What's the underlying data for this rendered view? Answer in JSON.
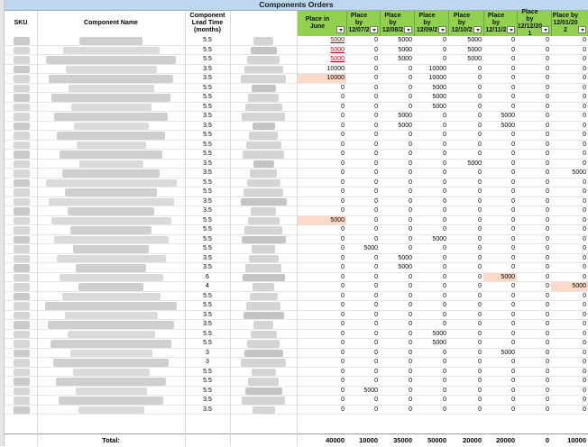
{
  "title": "Components Orders",
  "headers": {
    "sku": "SKU",
    "component_name": "Component Name",
    "lead_time": "Component Lead Time (months)",
    "place_cols": [
      "Place in June",
      "Place by 12/07/2",
      "Place by 12/08/2",
      "Place by 12/09/2",
      "Place by 12/10/2",
      "Place by 12/11/2",
      "Place by 12/12/20 1",
      "Place by 12/01/20 2"
    ]
  },
  "rows": [
    {
      "lt": "5.5",
      "v": [
        "5000",
        "0",
        "5000",
        "0",
        "5000",
        "0",
        "0",
        "0"
      ],
      "hl": [],
      "ul": [
        0
      ]
    },
    {
      "lt": "5.5",
      "v": [
        "5000",
        "0",
        "5000",
        "0",
        "5000",
        "0",
        "0",
        "0"
      ],
      "hl": [],
      "ul": [
        0
      ]
    },
    {
      "lt": "5.5",
      "v": [
        "5000",
        "0",
        "5000",
        "0",
        "5000",
        "0",
        "0",
        "0"
      ],
      "hl": [],
      "ul": [
        0
      ]
    },
    {
      "lt": "3.5",
      "v": [
        "10000",
        "0",
        "0",
        "10000",
        "0",
        "0",
        "0",
        "0"
      ],
      "hl": [],
      "ul": []
    },
    {
      "lt": "3.5",
      "v": [
        "10000",
        "0",
        "0",
        "10000",
        "0",
        "0",
        "0",
        "0"
      ],
      "hl": [
        0
      ],
      "ul": []
    },
    {
      "lt": "5.5",
      "v": [
        "0",
        "0",
        "0",
        "5000",
        "0",
        "0",
        "0",
        "0"
      ],
      "hl": [],
      "ul": []
    },
    {
      "lt": "5.5",
      "v": [
        "0",
        "0",
        "0",
        "5000",
        "0",
        "0",
        "0",
        "0"
      ],
      "hl": [],
      "ul": []
    },
    {
      "lt": "5.5",
      "v": [
        "0",
        "0",
        "0",
        "5000",
        "0",
        "0",
        "0",
        "0"
      ],
      "hl": [],
      "ul": []
    },
    {
      "lt": "3.5",
      "v": [
        "0",
        "0",
        "5000",
        "0",
        "0",
        "5000",
        "0",
        "0"
      ],
      "hl": [],
      "ul": []
    },
    {
      "lt": "3.5",
      "v": [
        "0",
        "0",
        "5000",
        "0",
        "0",
        "5000",
        "0",
        "0"
      ],
      "hl": [],
      "ul": []
    },
    {
      "lt": "5.5",
      "v": [
        "0",
        "0",
        "0",
        "0",
        "0",
        "0",
        "0",
        "0"
      ],
      "hl": [],
      "ul": []
    },
    {
      "lt": "5.5",
      "v": [
        "0",
        "0",
        "0",
        "0",
        "0",
        "0",
        "0",
        "0"
      ],
      "hl": [],
      "ul": []
    },
    {
      "lt": "5.5",
      "v": [
        "0",
        "0",
        "0",
        "0",
        "0",
        "0",
        "0",
        "0"
      ],
      "hl": [],
      "ul": []
    },
    {
      "lt": "3.5",
      "v": [
        "0",
        "0",
        "0",
        "0",
        "5000",
        "0",
        "0",
        "0"
      ],
      "hl": [],
      "ul": []
    },
    {
      "lt": "3.5",
      "v": [
        "0",
        "0",
        "0",
        "0",
        "0",
        "0",
        "0",
        "5000"
      ],
      "hl": [],
      "ul": []
    },
    {
      "lt": "5.5",
      "v": [
        "0",
        "0",
        "0",
        "0",
        "0",
        "0",
        "0",
        "0"
      ],
      "hl": [],
      "ul": []
    },
    {
      "lt": "5.5",
      "v": [
        "0",
        "0",
        "0",
        "0",
        "0",
        "0",
        "0",
        "0"
      ],
      "hl": [],
      "ul": []
    },
    {
      "lt": "3.5",
      "v": [
        "0",
        "0",
        "0",
        "0",
        "0",
        "0",
        "0",
        "0"
      ],
      "hl": [],
      "ul": []
    },
    {
      "lt": "3.5",
      "v": [
        "0",
        "0",
        "0",
        "0",
        "0",
        "0",
        "0",
        "0"
      ],
      "hl": [],
      "ul": []
    },
    {
      "lt": "5.5",
      "v": [
        "5000",
        "0",
        "0",
        "0",
        "0",
        "0",
        "0",
        "0"
      ],
      "hl": [
        0
      ],
      "ul": []
    },
    {
      "lt": "5.5",
      "v": [
        "0",
        "0",
        "0",
        "0",
        "0",
        "0",
        "0",
        "0"
      ],
      "hl": [],
      "ul": []
    },
    {
      "lt": "5.5",
      "v": [
        "0",
        "0",
        "0",
        "5000",
        "0",
        "0",
        "0",
        "0"
      ],
      "hl": [],
      "ul": []
    },
    {
      "lt": "5.5",
      "v": [
        "0",
        "5000",
        "0",
        "0",
        "0",
        "0",
        "0",
        "0"
      ],
      "hl": [],
      "ul": []
    },
    {
      "lt": "3.5",
      "v": [
        "0",
        "0",
        "5000",
        "0",
        "0",
        "0",
        "0",
        "0"
      ],
      "hl": [],
      "ul": []
    },
    {
      "lt": "3.5",
      "v": [
        "0",
        "0",
        "5000",
        "0",
        "0",
        "0",
        "0",
        "0"
      ],
      "hl": [],
      "ul": []
    },
    {
      "lt": "6",
      "v": [
        "0",
        "0",
        "0",
        "0",
        "0",
        "5000",
        "0",
        "0"
      ],
      "hl": [
        5
      ],
      "ul": []
    },
    {
      "lt": "4",
      "v": [
        "0",
        "0",
        "0",
        "0",
        "0",
        "0",
        "0",
        "5000"
      ],
      "hl": [
        7
      ],
      "ul": []
    },
    {
      "lt": "5.5",
      "v": [
        "0",
        "0",
        "0",
        "0",
        "0",
        "0",
        "0",
        "0"
      ],
      "hl": [],
      "ul": []
    },
    {
      "lt": "5.5",
      "v": [
        "0",
        "0",
        "0",
        "0",
        "0",
        "0",
        "0",
        "0"
      ],
      "hl": [],
      "ul": []
    },
    {
      "lt": "3.5",
      "v": [
        "0",
        "0",
        "0",
        "0",
        "0",
        "0",
        "0",
        "0"
      ],
      "hl": [],
      "ul": []
    },
    {
      "lt": "3.5",
      "v": [
        "0",
        "0",
        "0",
        "0",
        "0",
        "0",
        "0",
        "0"
      ],
      "hl": [],
      "ul": []
    },
    {
      "lt": "5.5",
      "v": [
        "0",
        "0",
        "0",
        "5000",
        "0",
        "0",
        "0",
        "0"
      ],
      "hl": [],
      "ul": []
    },
    {
      "lt": "5.5",
      "v": [
        "0",
        "0",
        "0",
        "5000",
        "0",
        "0",
        "0",
        "0"
      ],
      "hl": [],
      "ul": []
    },
    {
      "lt": "3",
      "v": [
        "0",
        "0",
        "0",
        "0",
        "0",
        "5000",
        "0",
        "0"
      ],
      "hl": [],
      "ul": []
    },
    {
      "lt": "3",
      "v": [
        "0",
        "0",
        "0",
        "0",
        "0",
        "0",
        "0",
        "0"
      ],
      "hl": [],
      "ul": []
    },
    {
      "lt": "5.5",
      "v": [
        "0",
        "0",
        "0",
        "0",
        "0",
        "0",
        "0",
        "0"
      ],
      "hl": [],
      "ul": []
    },
    {
      "lt": "5.5",
      "v": [
        "0",
        "0",
        "0",
        "0",
        "0",
        "0",
        "0",
        "0"
      ],
      "hl": [],
      "ul": []
    },
    {
      "lt": "5.5",
      "v": [
        "0",
        "5000",
        "0",
        "0",
        "0",
        "0",
        "0",
        "0"
      ],
      "hl": [],
      "ul": []
    },
    {
      "lt": "3.5",
      "v": [
        "0",
        "0",
        "0",
        "0",
        "0",
        "0",
        "0",
        "0"
      ],
      "hl": [],
      "ul": []
    },
    {
      "lt": "3.5",
      "v": [
        "0",
        "0",
        "0",
        "0",
        "0",
        "0",
        "0",
        "0"
      ],
      "hl": [],
      "ul": []
    }
  ],
  "totals": {
    "label": "Total:",
    "values": [
      "40000",
      "10000",
      "35000",
      "50000",
      "20000",
      "20000",
      "0",
      "10000"
    ]
  },
  "colors": {
    "header_green": "#92d050",
    "highlight": "#fcd9c8",
    "title_bar": "#bcd7ee"
  }
}
